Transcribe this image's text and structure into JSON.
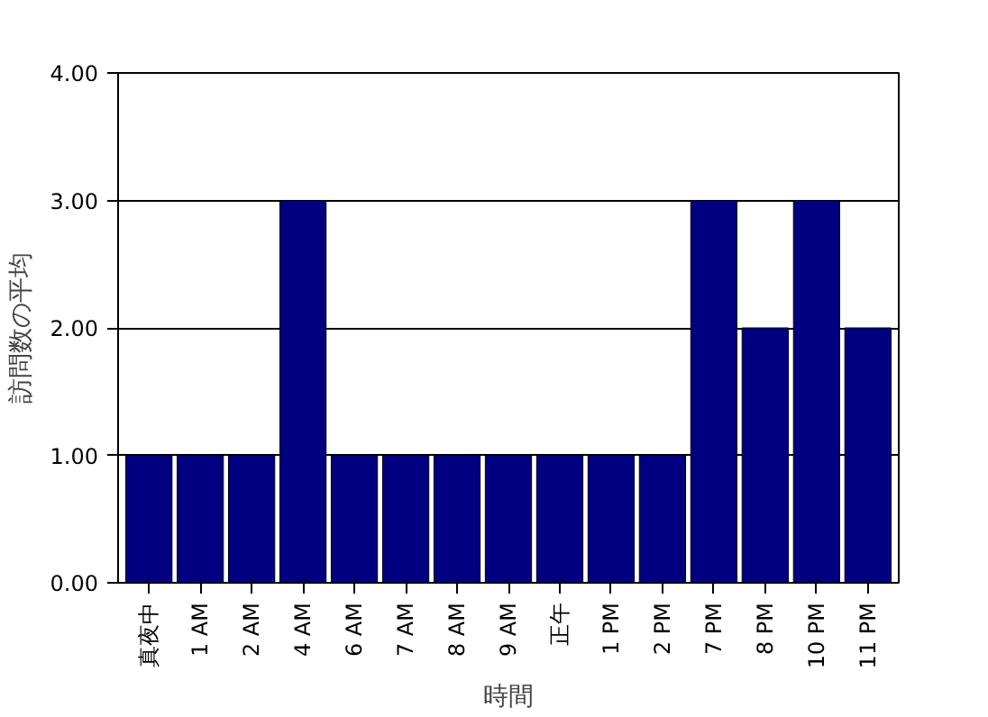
{
  "chart_data": {
    "type": "bar",
    "xlabel": "時間",
    "ylabel": "訪問数の平均",
    "categories": [
      "真夜中",
      "1 AM",
      "2 AM",
      "4 AM",
      "6 AM",
      "7 AM",
      "8 AM",
      "9 AM",
      "正午",
      "1 PM",
      "2 PM",
      "7 PM",
      "8 PM",
      "10 PM",
      "11 PM"
    ],
    "values": [
      1,
      1,
      1,
      3,
      1,
      1,
      1,
      1,
      1,
      1,
      1,
      3,
      2,
      3,
      2
    ],
    "color": "#000080",
    "ylim": [
      0,
      4
    ],
    "yticks": [
      {
        "value": 0,
        "label": "0.00"
      },
      {
        "value": 1,
        "label": "1.00"
      },
      {
        "value": 2,
        "label": "2.00"
      },
      {
        "value": 3,
        "label": "3.00"
      },
      {
        "value": 4,
        "label": "4.00"
      }
    ],
    "grid": "y"
  }
}
